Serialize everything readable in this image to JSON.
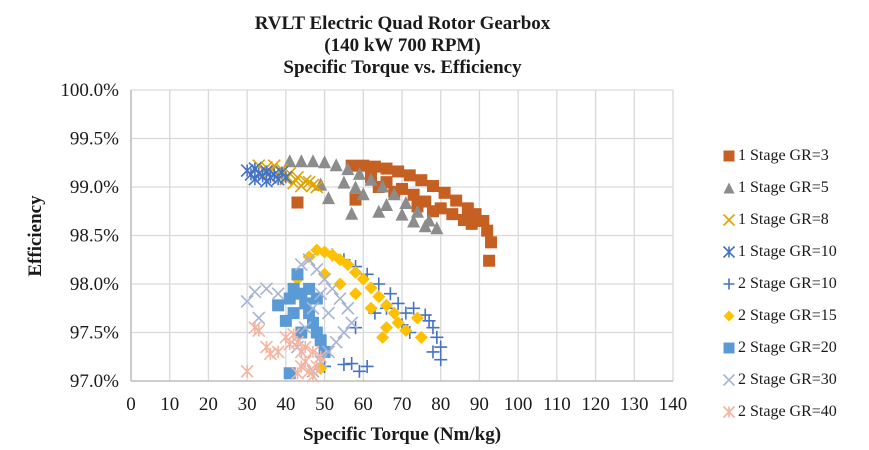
{
  "chart_data": {
    "type": "scatter",
    "title": [
      "RVLT Electric Quad Rotor Gearbox",
      "(140 kW 700 RPM)",
      "Specific Torque vs. Efficiency"
    ],
    "xlabel": "Specific Torque (Nm/kg)",
    "ylabel": "Efficiency",
    "xlim": [
      0,
      140
    ],
    "ylim": [
      97.0,
      100.0
    ],
    "x_ticks": [
      "0",
      "10",
      "20",
      "30",
      "40",
      "50",
      "60",
      "70",
      "80",
      "90",
      "100",
      "110",
      "120",
      "130",
      "140"
    ],
    "y_ticks": [
      "97.0%",
      "97.5%",
      "98.0%",
      "98.5%",
      "99.0%",
      "99.5%",
      "100.0%"
    ],
    "grid": true,
    "legend_position": "right",
    "series": [
      {
        "name": "1 Stage GR=3",
        "marker": "square",
        "color": "#C65F22",
        "points": [
          [
            43,
            98.84
          ],
          [
            58,
            98.87
          ],
          [
            57,
            99.22
          ],
          [
            60,
            99.22
          ],
          [
            63,
            99.21
          ],
          [
            66,
            99.19
          ],
          [
            69,
            99.16
          ],
          [
            72,
            99.12
          ],
          [
            75,
            99.07
          ],
          [
            78,
            99.01
          ],
          [
            81,
            98.94
          ],
          [
            84,
            98.86
          ],
          [
            87,
            98.78
          ],
          [
            89,
            98.72
          ],
          [
            91,
            98.65
          ],
          [
            92,
            98.55
          ],
          [
            93,
            98.43
          ],
          [
            92.5,
            98.24
          ],
          [
            66,
            99.05
          ],
          [
            70,
            98.98
          ],
          [
            73,
            98.92
          ],
          [
            76,
            98.85
          ],
          [
            80,
            98.78
          ],
          [
            83,
            98.72
          ],
          [
            86,
            98.66
          ],
          [
            88,
            98.62
          ],
          [
            62,
            99.1
          ],
          [
            64,
            99.0
          ],
          [
            68,
            98.95
          ],
          [
            74,
            98.8
          ],
          [
            78,
            98.75
          ]
        ]
      },
      {
        "name": "1 Stage GR=5",
        "marker": "triangle",
        "color": "#8C8C8C",
        "points": [
          [
            41,
            99.27
          ],
          [
            44,
            99.27
          ],
          [
            47,
            99.27
          ],
          [
            50,
            99.26
          ],
          [
            53,
            99.23
          ],
          [
            56,
            99.19
          ],
          [
            59,
            99.14
          ],
          [
            62,
            99.08
          ],
          [
            65,
            99.01
          ],
          [
            68,
            98.93
          ],
          [
            71,
            98.84
          ],
          [
            74,
            98.75
          ],
          [
            77,
            98.66
          ],
          [
            79,
            98.58
          ],
          [
            51,
            98.89
          ],
          [
            49,
            99.03
          ],
          [
            57,
            98.73
          ],
          [
            64,
            98.75
          ],
          [
            60,
            98.93
          ],
          [
            66,
            98.82
          ],
          [
            70,
            98.72
          ],
          [
            73,
            98.65
          ],
          [
            76,
            98.6
          ],
          [
            55,
            99.05
          ],
          [
            58,
            99.0
          ]
        ]
      },
      {
        "name": "1 Stage GR=8",
        "marker": "x",
        "color": "#E0A400",
        "points": [
          [
            33,
            99.22
          ],
          [
            35,
            99.2
          ],
          [
            37,
            99.22
          ],
          [
            39,
            99.18
          ],
          [
            41,
            99.14
          ],
          [
            43,
            99.1
          ],
          [
            45,
            99.06
          ],
          [
            47,
            99.02
          ],
          [
            36,
            99.16
          ],
          [
            38,
            99.12
          ],
          [
            40,
            99.08
          ],
          [
            42,
            99.04
          ],
          [
            44,
            99.01
          ],
          [
            46,
            99.05
          ],
          [
            48,
            99.0
          ]
        ]
      },
      {
        "name": "1 Stage GR=10",
        "marker": "asterisk",
        "color": "#4472C4",
        "points": [
          [
            30,
            99.17
          ],
          [
            31,
            99.13
          ],
          [
            32,
            99.19
          ],
          [
            33,
            99.14
          ],
          [
            34,
            99.11
          ],
          [
            35,
            99.16
          ],
          [
            36,
            99.1
          ],
          [
            37,
            99.13
          ],
          [
            38,
            99.08
          ],
          [
            39,
            99.15
          ],
          [
            40,
            99.1
          ],
          [
            32,
            99.08
          ],
          [
            35,
            99.06
          ]
        ]
      },
      {
        "name": "2 Stage GR=10",
        "marker": "plus",
        "color": "#4472C4",
        "points": [
          [
            52,
            98.3
          ],
          [
            55,
            98.25
          ],
          [
            58,
            98.18
          ],
          [
            61,
            98.1
          ],
          [
            64,
            98.0
          ],
          [
            67,
            97.9
          ],
          [
            69,
            97.8
          ],
          [
            71,
            97.7
          ],
          [
            73,
            97.75
          ],
          [
            76,
            97.68
          ],
          [
            77,
            97.62
          ],
          [
            78,
            97.55
          ],
          [
            79,
            97.45
          ],
          [
            78,
            97.3
          ],
          [
            80,
            97.35
          ],
          [
            80,
            97.22
          ],
          [
            58,
            97.55
          ],
          [
            55,
            97.17
          ],
          [
            59,
            97.1
          ],
          [
            61,
            97.15
          ],
          [
            63,
            97.7
          ],
          [
            66,
            97.75
          ],
          [
            70,
            97.58
          ],
          [
            72,
            97.5
          ],
          [
            50,
            97.15
          ],
          [
            57,
            97.18
          ]
        ]
      },
      {
        "name": "2 Stage GR=15",
        "marker": "diamond",
        "color": "#FFC000",
        "points": [
          [
            46,
            98.28
          ],
          [
            48,
            98.35
          ],
          [
            50,
            98.33
          ],
          [
            52,
            98.3
          ],
          [
            54,
            98.25
          ],
          [
            56,
            98.2
          ],
          [
            58,
            98.12
          ],
          [
            60,
            98.05
          ],
          [
            62,
            97.96
          ],
          [
            64,
            97.87
          ],
          [
            66,
            97.78
          ],
          [
            68,
            97.7
          ],
          [
            69,
            97.6
          ],
          [
            66,
            97.55
          ],
          [
            65,
            97.45
          ],
          [
            43,
            98.05
          ],
          [
            50,
            98.1
          ],
          [
            54,
            98.0
          ],
          [
            58,
            97.9
          ],
          [
            62,
            97.75
          ],
          [
            74,
            97.65
          ],
          [
            75,
            97.45
          ],
          [
            71,
            97.52
          ],
          [
            49,
            97.13
          ]
        ]
      },
      {
        "name": "2 Stage GR=20",
        "marker": "square",
        "color": "#5B9BD5",
        "points": [
          [
            43,
            98.1
          ],
          [
            42,
            97.95
          ],
          [
            41,
            97.85
          ],
          [
            38,
            97.78
          ],
          [
            40,
            97.62
          ],
          [
            42,
            97.7
          ],
          [
            44,
            97.9
          ],
          [
            45,
            97.8
          ],
          [
            46,
            97.7
          ],
          [
            47,
            97.6
          ],
          [
            48,
            97.5
          ],
          [
            49,
            97.42
          ],
          [
            50,
            97.3
          ],
          [
            41,
            97.08
          ],
          [
            44,
            97.5
          ],
          [
            46,
            97.95
          ],
          [
            48,
            97.85
          ]
        ]
      },
      {
        "name": "2 Stage GR=30",
        "marker": "x",
        "color": "#A5B4D8",
        "points": [
          [
            30,
            97.82
          ],
          [
            32,
            97.92
          ],
          [
            35,
            97.95
          ],
          [
            33,
            97.65
          ],
          [
            38,
            97.9
          ],
          [
            44,
            98.2
          ],
          [
            46,
            98.25
          ],
          [
            48,
            98.15
          ],
          [
            50,
            98.05
          ],
          [
            52,
            97.95
          ],
          [
            54,
            97.85
          ],
          [
            56,
            97.75
          ],
          [
            57,
            97.6
          ],
          [
            55,
            97.5
          ],
          [
            53,
            97.4
          ],
          [
            51,
            97.3
          ],
          [
            49,
            97.2
          ],
          [
            47,
            97.1
          ],
          [
            45,
            97.55
          ],
          [
            47,
            97.75
          ],
          [
            49,
            97.9
          ],
          [
            51,
            97.7
          ],
          [
            43,
            97.35
          ]
        ]
      },
      {
        "name": "2 Stage GR=40",
        "marker": "asterisk",
        "color": "#F4B4A0",
        "points": [
          [
            30,
            97.1
          ],
          [
            32,
            97.55
          ],
          [
            33,
            97.52
          ],
          [
            35,
            97.35
          ],
          [
            36,
            97.28
          ],
          [
            38,
            97.3
          ],
          [
            40,
            97.45
          ],
          [
            42,
            97.48
          ],
          [
            43,
            97.4
          ],
          [
            44,
            97.3
          ],
          [
            45,
            97.2
          ],
          [
            46,
            97.1
          ],
          [
            47,
            97.05
          ],
          [
            48,
            97.15
          ],
          [
            49,
            97.25
          ],
          [
            43,
            97.08
          ],
          [
            41,
            97.38
          ],
          [
            45,
            97.35
          ],
          [
            47,
            97.3
          ],
          [
            44,
            97.15
          ]
        ]
      }
    ]
  }
}
